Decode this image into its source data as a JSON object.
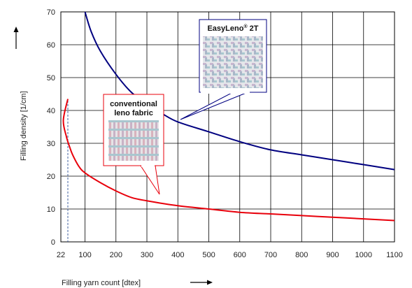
{
  "chart_data": {
    "type": "line",
    "xlabel": "Filling yarn count [dtex]",
    "ylabel": "Filling density [1/cm]",
    "xlim": [
      22,
      1100
    ],
    "ylim": [
      0,
      70
    ],
    "x_ticks": [
      "22",
      "100",
      "200",
      "300",
      "400",
      "500",
      "600",
      "700",
      "800",
      "900",
      "1000",
      "1100"
    ],
    "y_ticks": [
      "0",
      "10",
      "20",
      "30",
      "40",
      "50",
      "60",
      "70"
    ],
    "grid": true,
    "series": [
      {
        "name": "EasyLeno® 2T",
        "color": "#000080",
        "x": [
          100,
          120,
          150,
          200,
          250,
          300,
          350,
          400,
          500,
          600,
          700,
          800,
          900,
          1000,
          1100
        ],
        "y": [
          70,
          64,
          58,
          51,
          45.5,
          42,
          39,
          36.5,
          33.5,
          30.5,
          28,
          26.5,
          25,
          23.5,
          22
        ]
      },
      {
        "name": "conventional leno fabric",
        "color": "#e8000b",
        "x": [
          22,
          30,
          40,
          50,
          60,
          80,
          100,
          150,
          200,
          250,
          300,
          400,
          500,
          600,
          700,
          800,
          900,
          1000,
          1100
        ],
        "y": [
          43.5,
          37,
          32,
          29,
          26.5,
          23,
          21,
          18,
          15.5,
          13.5,
          12.5,
          11,
          10,
          9,
          8.5,
          8,
          7.5,
          7,
          6.5
        ]
      }
    ],
    "reference_line_x": 22,
    "annotations": [
      {
        "text_main": "EasyLeno",
        "text_sup": "®",
        "text_tail": " 2T",
        "series": 0
      },
      {
        "line1": "conventional",
        "line2": "leno fabric",
        "series": 1
      }
    ]
  }
}
